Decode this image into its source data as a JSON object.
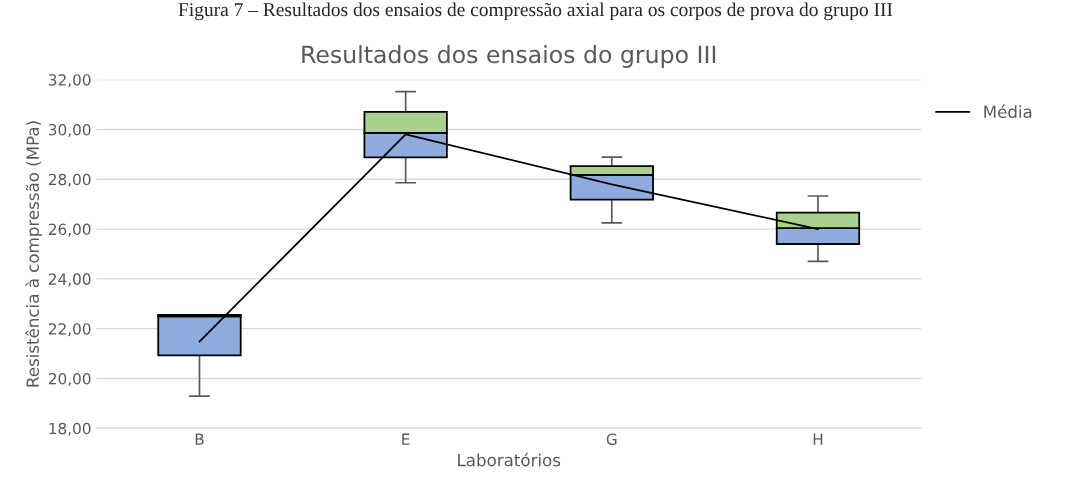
{
  "chart_data": {
    "type": "box",
    "title": "Resultados dos ensaios do grupo III",
    "xlabel": "Laboratórios",
    "ylabel": "Resistência à compressão (MPa)",
    "annotations": [
      "Figura 7 – Resultados dos ensaios de compressão axial para os corpos de prova do grupo III"
    ],
    "categories": [
      "B",
      "E",
      "G",
      "H"
    ],
    "colors": [
      "#a9d18e",
      "#a9d18e",
      "#a9d18e",
      "#a9d18e"
    ],
    "series": [
      {
        "color": "#8faadc",
        "boxes": [
          {
            "low": 19.29,
            "q1": 20.93,
            "median": 22.5,
            "q3": 22.55,
            "high": 22.55
          },
          {
            "low": 27.86,
            "q1": 28.88,
            "median": 29.86,
            "q3": 30.71,
            "high": 31.52
          },
          {
            "low": 26.25,
            "q1": 27.18,
            "median": 28.18,
            "q3": 28.53,
            "high": 28.89
          },
          {
            "low": 24.7,
            "q1": 25.4,
            "median": 26.04,
            "q3": 26.66,
            "high": 27.33
          }
        ]
      },
      {
        "type": "line",
        "name": "Média",
        "color": "#000000",
        "values": [
          21.48,
          29.8,
          27.8,
          26.0
        ]
      }
    ],
    "ylim": [
      18,
      32
    ],
    "yticks": [
      {
        "value": 18,
        "label": "18,00"
      },
      {
        "value": 20,
        "label": "20,00"
      },
      {
        "value": 22,
        "label": "22,00"
      },
      {
        "value": 24,
        "label": "24,00"
      },
      {
        "value": 26,
        "label": "26,00"
      },
      {
        "value": 28,
        "label": "28,00"
      },
      {
        "value": 30,
        "label": "30,00"
      },
      {
        "value": 32,
        "label": "32,00"
      }
    ],
    "grid": "y",
    "legend": "top right"
  }
}
